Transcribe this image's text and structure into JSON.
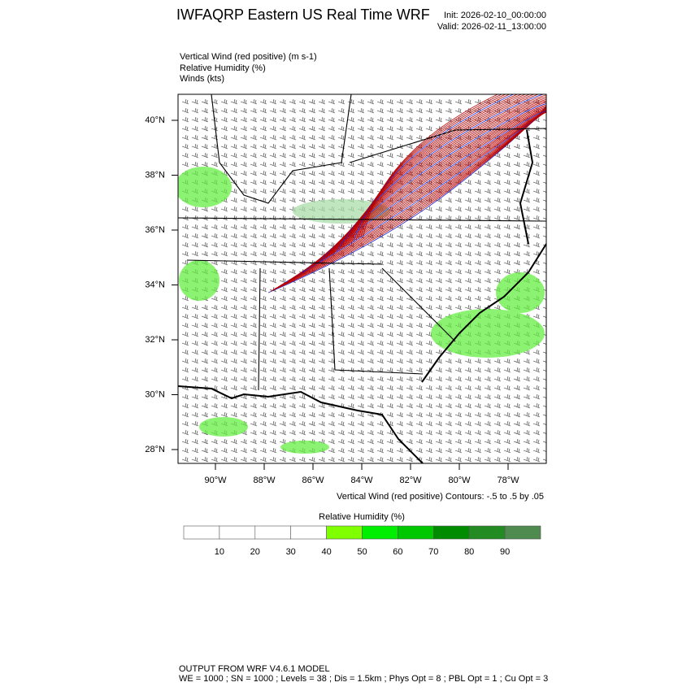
{
  "header": {
    "title": "IWFAQRP Eastern US Real Time WRF",
    "init": "Init: 2026-02-10_00:00:00",
    "valid": "Valid: 2026-02-11_13:00:00"
  },
  "fields": [
    "Vertical Wind (red positive)   (m s-1)",
    "Relative Humidity   (%)",
    "Winds   (kts)"
  ],
  "lat_ticks": [
    {
      "value": 40,
      "label": "40°N"
    },
    {
      "value": 38,
      "label": "38°N"
    },
    {
      "value": 36,
      "label": "36°N"
    },
    {
      "value": 34,
      "label": "34°N"
    },
    {
      "value": 32,
      "label": "32°N"
    },
    {
      "value": 30,
      "label": "30°N"
    },
    {
      "value": 28,
      "label": "28°N"
    }
  ],
  "lon_ticks": [
    {
      "value": -90,
      "label": "90°W"
    },
    {
      "value": -88,
      "label": "88°W"
    },
    {
      "value": -86,
      "label": "86°W"
    },
    {
      "value": -84,
      "label": "84°W"
    },
    {
      "value": -82,
      "label": "82°W"
    },
    {
      "value": -80,
      "label": "80°W"
    },
    {
      "value": -78,
      "label": "78°W"
    }
  ],
  "contour_note": "Vertical Wind (red positive) Contours: -.5 to .5 by .05",
  "colorbar": {
    "title": "Relative Humidity  (%)",
    "levels": [
      10,
      20,
      30,
      40,
      50,
      60,
      70,
      80,
      90
    ],
    "colors": [
      "#ffffff",
      "#ffffff",
      "#ffffff",
      "#ffffff",
      "#80ff00",
      "#00ee00",
      "#00c800",
      "#008c00",
      "#228b22",
      "#4f8a4f"
    ]
  },
  "footer": [
    "OUTPUT FROM WRF V4.6.1 MODEL",
    "WE = 1000 ; SN = 1000 ; Levels = 38 ; Dis = 1.5km ; Phys Opt = 8 ; PBL Opt = 1 ; Cu Opt = 3"
  ]
}
